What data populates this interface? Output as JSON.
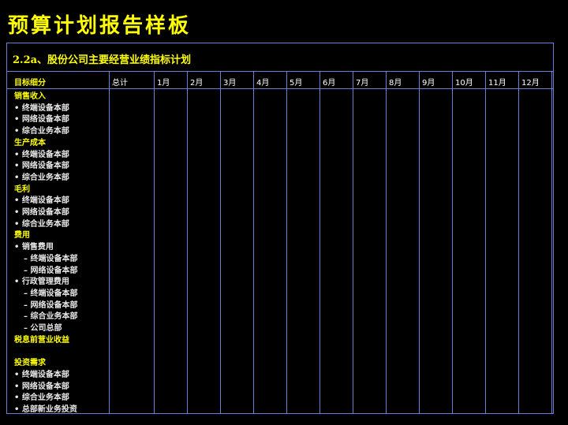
{
  "title": "预算计划报告样板",
  "subtitle": "2.2a、股份公司主要经营业绩指标计划",
  "header": {
    "first": "目标细分",
    "total": "总计",
    "months": [
      "1月",
      "2月",
      "3月",
      "4月",
      "5月",
      "6月",
      "7月",
      "8月",
      "9月",
      "10月",
      "11月",
      "12月"
    ]
  },
  "rows": [
    {
      "text": "销售收入",
      "level": "section"
    },
    {
      "text": "• 终端设备本部",
      "level": 1
    },
    {
      "text": "• 网络设备本部",
      "level": 1
    },
    {
      "text": "• 综合业务本部",
      "level": 1
    },
    {
      "text": "生产成本",
      "level": "section"
    },
    {
      "text": "• 终端设备本部",
      "level": 1
    },
    {
      "text": "• 网络设备本部",
      "level": 1
    },
    {
      "text": "• 综合业务本部",
      "level": 1
    },
    {
      "text": "毛利",
      "level": "section"
    },
    {
      "text": "• 终端设备本部",
      "level": 1
    },
    {
      "text": "• 网络设备本部",
      "level": 1
    },
    {
      "text": "• 综合业务本部",
      "level": 1
    },
    {
      "text": "费用",
      "level": "section"
    },
    {
      "text": "• 销售费用",
      "level": 1
    },
    {
      "text": "– 终端设备本部",
      "level": 2
    },
    {
      "text": "– 网络设备本部",
      "level": 2
    },
    {
      "text": "• 行政管理费用",
      "level": 1
    },
    {
      "text": "– 终端设备本部",
      "level": 2
    },
    {
      "text": "– 网络设备本部",
      "level": 2
    },
    {
      "text": "– 综合业务本部",
      "level": 2
    },
    {
      "text": "– 公司总部",
      "level": 2
    },
    {
      "text": "税息前营业收益",
      "level": "section"
    },
    {
      "text": "",
      "level": "blank"
    },
    {
      "text": "投资需求",
      "level": "section"
    },
    {
      "text": "• 终端设备本部",
      "level": 1
    },
    {
      "text": "• 网络设备本部",
      "level": 1
    },
    {
      "text": "• 综合业务本部",
      "level": 1
    },
    {
      "text": "• 总部新业务投资",
      "level": 1
    }
  ]
}
